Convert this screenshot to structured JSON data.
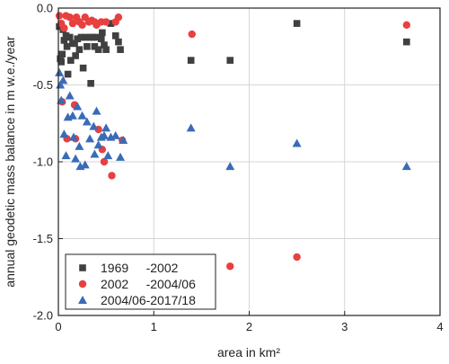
{
  "chart_data": {
    "type": "scatter",
    "xlabel": "area in km²",
    "ylabel": "annual geodetic mass balance in m w.e./year",
    "xlim": [
      0,
      4
    ],
    "ylim": [
      -2.0,
      0.0
    ],
    "x_ticks": [
      "0",
      "1",
      "2",
      "3",
      "4"
    ],
    "y_ticks": [
      "0.0",
      "-0.5",
      "-1.0",
      "-1.5",
      "-2.0"
    ],
    "grid": true,
    "legend_position": "bottom-left",
    "series": [
      {
        "name": "1969     -2002",
        "marker": "square",
        "color": "#404040",
        "points": [
          [
            0.01,
            -0.12
          ],
          [
            0.02,
            -0.33
          ],
          [
            0.03,
            -0.35
          ],
          [
            0.04,
            -0.3
          ],
          [
            0.05,
            -0.14
          ],
          [
            0.06,
            -0.21
          ],
          [
            0.08,
            -0.18
          ],
          [
            0.09,
            -0.25
          ],
          [
            0.1,
            -0.43
          ],
          [
            0.12,
            -0.19
          ],
          [
            0.13,
            -0.34
          ],
          [
            0.15,
            -0.23
          ],
          [
            0.17,
            -0.23
          ],
          [
            0.18,
            -0.31
          ],
          [
            0.2,
            -0.2
          ],
          [
            0.22,
            -0.27
          ],
          [
            0.24,
            -0.19
          ],
          [
            0.26,
            -0.39
          ],
          [
            0.28,
            -0.19
          ],
          [
            0.3,
            -0.25
          ],
          [
            0.33,
            -0.19
          ],
          [
            0.34,
            -0.49
          ],
          [
            0.36,
            -0.19
          ],
          [
            0.38,
            -0.25
          ],
          [
            0.4,
            -0.19
          ],
          [
            0.42,
            -0.27
          ],
          [
            0.45,
            -0.2
          ],
          [
            0.46,
            -0.16
          ],
          [
            0.48,
            -0.24
          ],
          [
            0.5,
            -0.27
          ],
          [
            0.55,
            -0.1
          ],
          [
            0.6,
            -0.18
          ],
          [
            0.63,
            -0.22
          ],
          [
            0.65,
            -0.27
          ],
          [
            1.39,
            -0.34
          ],
          [
            1.8,
            -0.34
          ],
          [
            2.5,
            -0.1
          ],
          [
            3.65,
            -0.22
          ]
        ]
      },
      {
        "name": "2002     -2004/06",
        "marker": "circle",
        "color": "#e8403f",
        "points": [
          [
            0.01,
            -0.05
          ],
          [
            0.03,
            -0.1
          ],
          [
            0.04,
            -0.61
          ],
          [
            0.06,
            -0.13
          ],
          [
            0.08,
            -0.05
          ],
          [
            0.09,
            -0.85
          ],
          [
            0.12,
            -0.06
          ],
          [
            0.15,
            -0.1
          ],
          [
            0.17,
            -0.63
          ],
          [
            0.18,
            -0.85
          ],
          [
            0.19,
            -0.06
          ],
          [
            0.22,
            -0.09
          ],
          [
            0.25,
            -0.11
          ],
          [
            0.28,
            -0.06
          ],
          [
            0.32,
            -0.09
          ],
          [
            0.35,
            -0.08
          ],
          [
            0.38,
            -0.09
          ],
          [
            0.4,
            -0.11
          ],
          [
            0.42,
            -0.79
          ],
          [
            0.45,
            -0.09
          ],
          [
            0.46,
            -0.92
          ],
          [
            0.48,
            -1.0
          ],
          [
            0.5,
            -0.09
          ],
          [
            0.56,
            -1.09
          ],
          [
            0.6,
            -0.09
          ],
          [
            0.63,
            -0.06
          ],
          [
            0.67,
            -0.86
          ],
          [
            1.4,
            -0.17
          ],
          [
            1.8,
            -1.68
          ],
          [
            2.5,
            -1.62
          ],
          [
            3.65,
            -0.11
          ]
        ]
      },
      {
        "name": "2004/06-2017/18",
        "marker": "triangle",
        "color": "#3a6bb8",
        "points": [
          [
            0.01,
            -0.42
          ],
          [
            0.02,
            -0.5
          ],
          [
            0.03,
            -0.6
          ],
          [
            0.05,
            -0.47
          ],
          [
            0.06,
            -0.82
          ],
          [
            0.08,
            -0.96
          ],
          [
            0.1,
            -0.71
          ],
          [
            0.12,
            -0.57
          ],
          [
            0.15,
            -0.7
          ],
          [
            0.16,
            -0.84
          ],
          [
            0.18,
            -0.98
          ],
          [
            0.2,
            -0.64
          ],
          [
            0.22,
            -0.9
          ],
          [
            0.23,
            -1.03
          ],
          [
            0.25,
            -0.7
          ],
          [
            0.28,
            -1.02
          ],
          [
            0.3,
            -0.74
          ],
          [
            0.33,
            -0.85
          ],
          [
            0.37,
            -0.77
          ],
          [
            0.38,
            -0.95
          ],
          [
            0.4,
            -0.67
          ],
          [
            0.42,
            -0.89
          ],
          [
            0.45,
            -0.84
          ],
          [
            0.48,
            -0.83
          ],
          [
            0.5,
            -0.78
          ],
          [
            0.52,
            -0.96
          ],
          [
            0.55,
            -0.84
          ],
          [
            0.6,
            -0.83
          ],
          [
            0.65,
            -0.97
          ],
          [
            0.68,
            -0.86
          ],
          [
            1.39,
            -0.78
          ],
          [
            1.8,
            -1.03
          ],
          [
            2.5,
            -0.88
          ],
          [
            3.65,
            -1.03
          ]
        ]
      }
    ]
  }
}
